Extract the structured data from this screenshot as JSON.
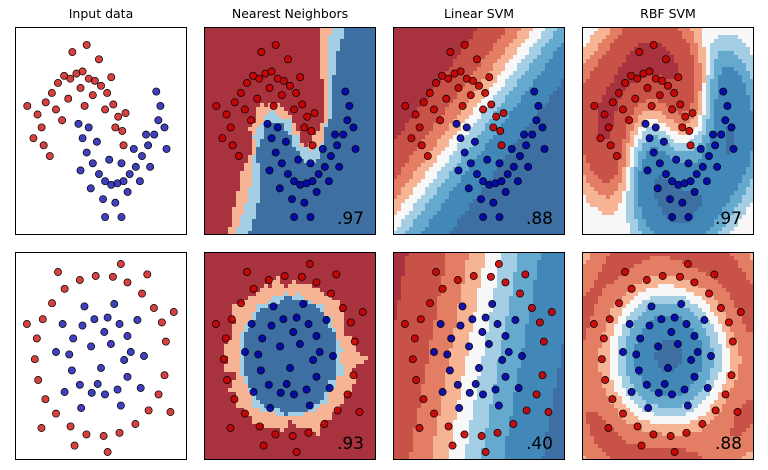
{
  "column_titles": [
    "Input data",
    "Nearest Neighbors",
    "Linear SVM",
    "RBF SVM"
  ],
  "scores": {
    "moons": [
      "",
      ".97",
      ".88",
      ".97"
    ],
    "circles": [
      "",
      ".93",
      ".40",
      ".88"
    ]
  },
  "colors": {
    "class_red": "#c80000",
    "class_blue": "#0000a8",
    "cmap_red_dark": "#a8323e",
    "cmap_blue_dark": "#3d6fa3",
    "cmap_mid": "#f5f5f5"
  },
  "chart_data": [
    {
      "type": "scatter",
      "title": "Input data",
      "dataset": "moons",
      "xlim": [
        -1.6,
        2.6
      ],
      "ylim": [
        -1.2,
        1.7
      ],
      "grid": false,
      "series": [
        {
          "points": [
            [
              -1.05,
              0.48
            ],
            [
              -0.95,
              0.3
            ],
            [
              -0.85,
              0.65
            ],
            [
              -0.7,
              0.78
            ],
            [
              -0.55,
              0.92
            ],
            [
              -0.4,
              1.02
            ],
            [
              -0.25,
              0.98
            ],
            [
              -0.1,
              1.05
            ],
            [
              0.05,
              1.08
            ],
            [
              0.2,
              0.98
            ],
            [
              0.35,
              0.95
            ],
            [
              0.5,
              0.88
            ],
            [
              0.65,
              0.78
            ],
            [
              0.8,
              0.62
            ],
            [
              0.92,
              0.45
            ],
            [
              1.02,
              0.25
            ],
            [
              1.05,
              0.05
            ],
            [
              -0.9,
              0.05
            ],
            [
              -1.15,
              0.15
            ],
            [
              -0.6,
              0.55
            ],
            [
              -0.3,
              0.7
            ],
            [
              0.0,
              0.85
            ],
            [
              0.3,
              0.75
            ],
            [
              0.6,
              0.55
            ],
            [
              0.85,
              0.3
            ],
            [
              -0.75,
              -0.1
            ],
            [
              -0.2,
              1.35
            ],
            [
              0.15,
              1.45
            ],
            [
              0.45,
              1.25
            ],
            [
              -1.3,
              0.6
            ],
            [
              0.75,
              1.0
            ],
            [
              1.1,
              0.5
            ],
            [
              -0.45,
              0.4
            ],
            [
              0.1,
              0.6
            ]
          ]
        },
        {
          "points": [
            [
              -0.05,
              0.35
            ],
            [
              0.05,
              0.15
            ],
            [
              0.15,
              -0.05
            ],
            [
              0.3,
              -0.2
            ],
            [
              0.45,
              -0.35
            ],
            [
              0.6,
              -0.45
            ],
            [
              0.75,
              -0.5
            ],
            [
              0.9,
              -0.48
            ],
            [
              1.05,
              -0.45
            ],
            [
              1.2,
              -0.35
            ],
            [
              1.35,
              -0.25
            ],
            [
              1.5,
              -0.1
            ],
            [
              1.65,
              0.05
            ],
            [
              1.8,
              0.2
            ],
            [
              1.9,
              0.4
            ],
            [
              1.95,
              0.6
            ],
            [
              0.0,
              -0.3
            ],
            [
              0.25,
              -0.55
            ],
            [
              0.55,
              -0.7
            ],
            [
              0.85,
              -0.75
            ],
            [
              1.15,
              -0.6
            ],
            [
              1.45,
              -0.45
            ],
            [
              1.7,
              -0.25
            ],
            [
              2.05,
              0.3
            ],
            [
              0.4,
              0.1
            ],
            [
              0.7,
              -0.15
            ],
            [
              1.0,
              -0.2
            ],
            [
              1.3,
              0.0
            ],
            [
              1.6,
              0.2
            ],
            [
              0.2,
              0.3
            ],
            [
              0.6,
              -0.95
            ],
            [
              1.0,
              -0.95
            ],
            [
              1.85,
              0.8
            ],
            [
              2.1,
              0.0
            ]
          ]
        }
      ]
    },
    {
      "type": "scatter",
      "title": "Input data",
      "dataset": "circles",
      "xlim": [
        -1.3,
        1.3
      ],
      "ylim": [
        -1.3,
        1.3
      ],
      "grid": false,
      "series": [
        {
          "points": [
            [
              0.98,
              0.18
            ],
            [
              0.92,
              0.42
            ],
            [
              0.8,
              0.6
            ],
            [
              0.62,
              0.78
            ],
            [
              0.4,
              0.92
            ],
            [
              0.18,
              0.99
            ],
            [
              -0.08,
              1.0
            ],
            [
              -0.32,
              0.95
            ],
            [
              -0.55,
              0.84
            ],
            [
              -0.74,
              0.66
            ],
            [
              -0.88,
              0.46
            ],
            [
              -0.97,
              0.22
            ],
            [
              -1.0,
              -0.04
            ],
            [
              -0.95,
              -0.3
            ],
            [
              -0.84,
              -0.54
            ],
            [
              -0.68,
              -0.72
            ],
            [
              -0.46,
              -0.88
            ],
            [
              -0.22,
              -0.98
            ],
            [
              0.04,
              -1.0
            ],
            [
              0.28,
              -0.96
            ],
            [
              0.52,
              -0.85
            ],
            [
              0.72,
              -0.68
            ],
            [
              0.87,
              -0.48
            ],
            [
              0.96,
              -0.24
            ],
            [
              1.1,
              0.55
            ],
            [
              -1.12,
              0.4
            ],
            [
              0.3,
              1.15
            ],
            [
              -0.4,
              -1.12
            ],
            [
              1.05,
              -0.7
            ],
            [
              -0.9,
              -0.9
            ],
            [
              0.7,
              1.02
            ],
            [
              -0.65,
              1.05
            ],
            [
              0.1,
              -1.2
            ]
          ]
        },
        {
          "points": [
            [
              0.45,
              0.05
            ],
            [
              0.4,
              0.25
            ],
            [
              0.28,
              0.4
            ],
            [
              0.1,
              0.48
            ],
            [
              -0.1,
              0.46
            ],
            [
              -0.28,
              0.38
            ],
            [
              -0.42,
              0.22
            ],
            [
              -0.48,
              0.02
            ],
            [
              -0.44,
              -0.18
            ],
            [
              -0.32,
              -0.36
            ],
            [
              -0.14,
              -0.46
            ],
            [
              0.06,
              -0.48
            ],
            [
              0.25,
              -0.42
            ],
            [
              0.4,
              -0.26
            ],
            [
              0.15,
              0.15
            ],
            [
              -0.15,
              0.12
            ],
            [
              0.0,
              -0.15
            ],
            [
              0.55,
              0.45
            ],
            [
              -0.58,
              0.4
            ],
            [
              0.6,
              -0.4
            ],
            [
              -0.55,
              -0.45
            ],
            [
              0.2,
              0.65
            ],
            [
              -0.25,
              0.62
            ],
            [
              0.3,
              -0.62
            ],
            [
              -0.3,
              -0.65
            ],
            [
              0.65,
              0.0
            ],
            [
              -0.68,
              0.05
            ],
            [
              0.05,
              0.3
            ],
            [
              -0.05,
              -0.35
            ],
            [
              0.35,
              -0.05
            ]
          ]
        }
      ]
    }
  ]
}
